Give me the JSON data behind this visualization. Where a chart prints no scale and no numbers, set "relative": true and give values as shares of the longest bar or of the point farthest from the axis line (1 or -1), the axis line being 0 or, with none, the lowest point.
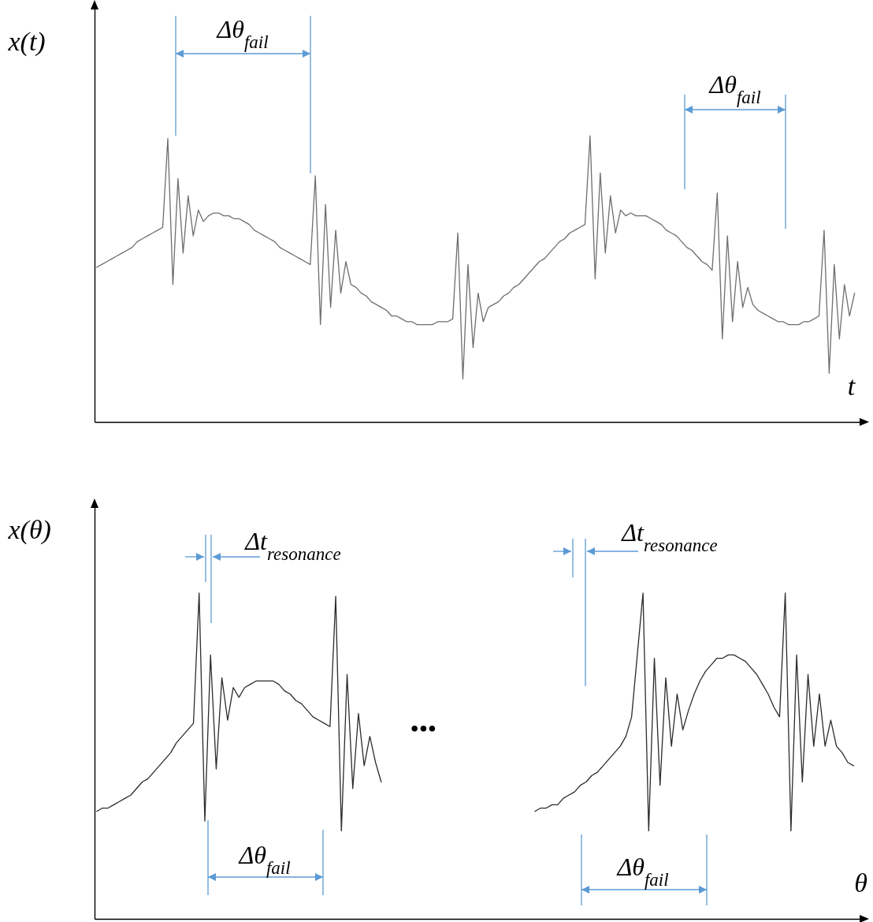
{
  "chart_data": [
    {
      "type": "line",
      "relative": true,
      "ylabel": "x(t)",
      "xlabel": "t",
      "color": "#6e6e6e",
      "categories": [
        null,
        null,
        null,
        null,
        null,
        null,
        null,
        null,
        null,
        null,
        null,
        null,
        null,
        null,
        null,
        null,
        null,
        null,
        null,
        null,
        null,
        null,
        null,
        null,
        null,
        null,
        null,
        null,
        null,
        null,
        null,
        null,
        null,
        null,
        null,
        null,
        null,
        null,
        null,
        null,
        null,
        null,
        null,
        null,
        null,
        null,
        null,
        null,
        null,
        null,
        null,
        null,
        null,
        null,
        null,
        null,
        null,
        null,
        null,
        null,
        null,
        null,
        null,
        null,
        null,
        null,
        null,
        null,
        null,
        null,
        null,
        null,
        null,
        null,
        null,
        null,
        null,
        null,
        null,
        null,
        null,
        null,
        null,
        null,
        null,
        null,
        null,
        null,
        null,
        null,
        null,
        null,
        null,
        null,
        null,
        null,
        null,
        null,
        null,
        null,
        null,
        null,
        null,
        null,
        null,
        null,
        null,
        null,
        null,
        null,
        null,
        null,
        null,
        null,
        null,
        null,
        null,
        null,
        null,
        null,
        null,
        null,
        null,
        null,
        null,
        null,
        null,
        null,
        null,
        null,
        null,
        null,
        null,
        null,
        null,
        null,
        null,
        null,
        null,
        null,
        null,
        null,
        null,
        null,
        null,
        null,
        null,
        null,
        null,
        null
      ],
      "values": [
        0.54,
        0.55,
        0.56,
        0.57,
        0.58,
        0.59,
        0.6,
        0.61,
        0.63,
        0.64,
        0.65,
        0.66,
        0.67,
        0.68,
        0.99,
        0.48,
        0.85,
        0.59,
        0.79,
        0.65,
        0.74,
        0.7,
        0.72,
        0.73,
        0.73,
        0.72,
        0.72,
        0.71,
        0.71,
        0.7,
        0.69,
        0.67,
        0.66,
        0.65,
        0.64,
        0.63,
        0.61,
        0.6,
        0.59,
        0.58,
        0.57,
        0.56,
        0.55,
        0.86,
        0.34,
        0.76,
        0.4,
        0.67,
        0.45,
        0.56,
        0.48,
        0.47,
        0.45,
        0.44,
        0.42,
        0.41,
        0.4,
        0.39,
        0.37,
        0.37,
        0.36,
        0.35,
        0.35,
        0.34,
        0.34,
        0.34,
        0.34,
        0.35,
        0.35,
        0.35,
        0.36,
        0.66,
        0.15,
        0.55,
        0.26,
        0.45,
        0.35,
        0.4,
        0.41,
        0.42,
        0.44,
        0.45,
        0.47,
        0.48,
        0.5,
        0.52,
        0.54,
        0.56,
        0.57,
        0.59,
        0.61,
        0.63,
        0.64,
        0.66,
        0.67,
        0.68,
        0.69,
        1.0,
        0.5,
        0.87,
        0.59,
        0.79,
        0.66,
        0.74,
        0.72,
        0.73,
        0.72,
        0.72,
        0.72,
        0.71,
        0.7,
        0.69,
        0.67,
        0.66,
        0.65,
        0.63,
        0.61,
        0.6,
        0.58,
        0.56,
        0.55,
        0.53,
        0.8,
        0.29,
        0.65,
        0.35,
        0.56,
        0.4,
        0.47,
        0.41,
        0.39,
        0.38,
        0.37,
        0.36,
        0.35,
        0.35,
        0.34,
        0.34,
        0.34,
        0.35,
        0.35,
        0.36,
        0.37,
        0.67,
        0.17,
        0.55,
        0.29,
        0.48,
        0.37,
        0.45
      ],
      "annotations": [
        "Δθ$_{fail}$",
        "Δθ$_{fail}$"
      ]
    },
    {
      "type": "line",
      "relative": true,
      "ylabel": "x(θ)",
      "xlabel": "θ",
      "categories": [
        null,
        null,
        null,
        null,
        null,
        null,
        null,
        null,
        null,
        null,
        null,
        null,
        null,
        null,
        null,
        null,
        null,
        null,
        null,
        null,
        null,
        null,
        null,
        null,
        null,
        null,
        null,
        null,
        null,
        null,
        null,
        null,
        null,
        null,
        null,
        null,
        null,
        null,
        null,
        null,
        null,
        null,
        null,
        null,
        null,
        null,
        null,
        null,
        null,
        null,
        null,
        null,
        null,
        null,
        null,
        null,
        null,
        null,
        null,
        null,
        null,
        null,
        null,
        null,
        null,
        null,
        null,
        null,
        null,
        null,
        null,
        null,
        null,
        null,
        null,
        null,
        null,
        null,
        null,
        null,
        null,
        null,
        null,
        null,
        null,
        null,
        null,
        null,
        null,
        null,
        null,
        null,
        null,
        null,
        null,
        null,
        null,
        null,
        null,
        null,
        null,
        null,
        null,
        null,
        null,
        null,
        null,
        null,
        null,
        null,
        null,
        null,
        null,
        null,
        null,
        null,
        null,
        null,
        null,
        null,
        null,
        null,
        null,
        null,
        null,
        null,
        null,
        null,
        null,
        null,
        null,
        null,
        null,
        null
      ],
      "series": [
        {
          "color": "#2b2b2b",
          "values": [
            0.33,
            0.34,
            0.34,
            0.35,
            0.36,
            0.37,
            0.38,
            0.4,
            0.42,
            0.43,
            0.45,
            0.47,
            0.49,
            0.51,
            0.54,
            0.56,
            0.58,
            0.6,
            1.0,
            0.3,
            0.81,
            0.46,
            0.74,
            0.61,
            0.71,
            0.68,
            0.71,
            0.72,
            0.73,
            0.73,
            0.73,
            0.73,
            0.72,
            0.7,
            0.69,
            0.67,
            0.66,
            0.64,
            0.62,
            0.61,
            0.6,
            0.59,
            0.99,
            0.27,
            0.75,
            0.4,
            0.63,
            0.47,
            0.56,
            0.48,
            0.42,
            null,
            null,
            null,
            null,
            null,
            null,
            null,
            null,
            null,
            null,
            null,
            null,
            null,
            null,
            null,
            null,
            null,
            null,
            null,
            null,
            null,
            null,
            null,
            null,
            null,
            null,
            null,
            null,
            null,
            null,
            null,
            null,
            null,
            null,
            null,
            null,
            null,
            null,
            null,
            null,
            null,
            null,
            null,
            null,
            null,
            null,
            null,
            null,
            null,
            null,
            null,
            null,
            null,
            null,
            null,
            null,
            null,
            null,
            null,
            null,
            null,
            null,
            null,
            null,
            null,
            null,
            null,
            null,
            null,
            null,
            null,
            null,
            null,
            null,
            null,
            null,
            null,
            null,
            null,
            null,
            null,
            null,
            null
          ]
        },
        {
          "color": "#2b2b2b",
          "values": [
            null,
            null,
            null,
            null,
            null,
            null,
            null,
            null,
            null,
            null,
            null,
            null,
            null,
            null,
            null,
            null,
            null,
            null,
            null,
            null,
            null,
            null,
            null,
            null,
            null,
            null,
            null,
            null,
            null,
            null,
            null,
            null,
            null,
            null,
            null,
            null,
            null,
            null,
            null,
            null,
            null,
            null,
            null,
            null,
            null,
            null,
            null,
            null,
            null,
            null,
            null,
            null,
            null,
            null,
            null,
            null,
            null,
            null,
            null,
            null,
            null,
            null,
            null,
            null,
            null,
            null,
            null,
            null,
            null,
            null,
            null,
            null,
            null,
            null,
            null,
            null,
            null,
            0.33,
            0.34,
            0.34,
            0.35,
            0.35,
            0.37,
            0.38,
            0.39,
            0.41,
            0.42,
            0.44,
            0.45,
            0.47,
            0.49,
            0.51,
            0.53,
            0.56,
            0.62,
            0.81,
            1.0,
            0.27,
            0.8,
            0.41,
            0.74,
            0.53,
            0.69,
            0.58,
            0.64,
            0.69,
            0.73,
            0.76,
            0.78,
            0.8,
            0.8,
            0.81,
            0.81,
            0.8,
            0.79,
            0.77,
            0.75,
            0.72,
            0.69,
            0.65,
            0.62,
            1.0,
            0.27,
            0.81,
            0.42,
            0.75,
            0.53,
            0.69,
            0.53,
            0.61,
            0.53,
            0.51,
            0.48,
            0.47
          ]
        }
      ],
      "annotations": [
        "Δt$_{resonance}$",
        "Δt$_{resonance}$",
        "Δθ$_{fail}$",
        "Δθ$_{fail}$",
        "•••"
      ]
    }
  ]
}
